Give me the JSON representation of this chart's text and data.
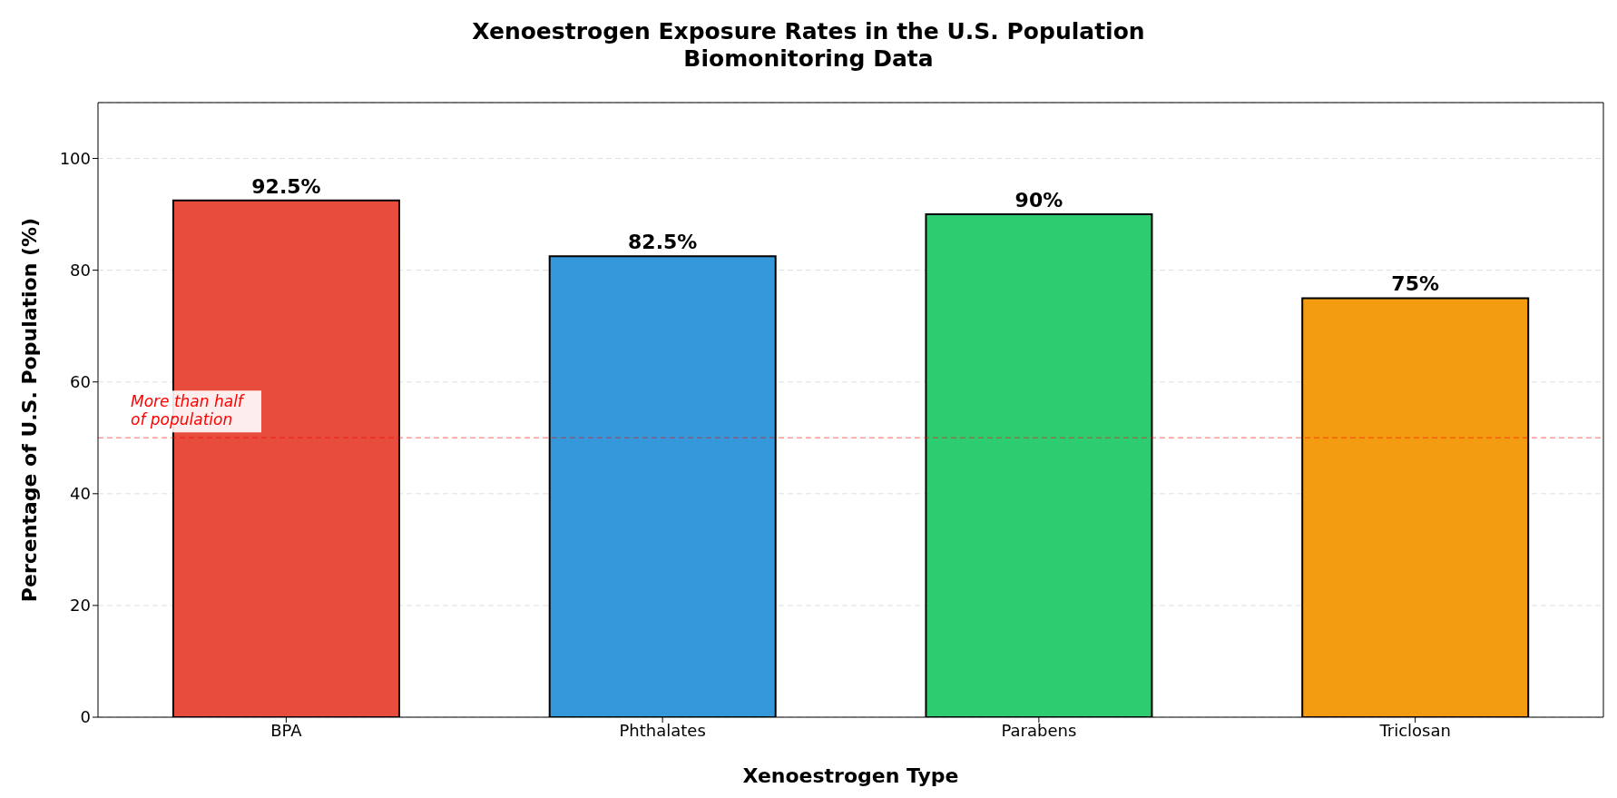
{
  "chart_data": {
    "type": "bar",
    "title": "Xenoestrogen Exposure Rates in the U.S. Population",
    "subtitle": "Biomonitoring Data",
    "xlabel": "Xenoestrogen Type",
    "ylabel": "Percentage of U.S. Population (%)",
    "categories": [
      "BPA",
      "Phthalates",
      "Parabens",
      "Triclosan"
    ],
    "values": [
      92.5,
      82.5,
      90,
      75
    ],
    "colors": [
      "#e74c3c",
      "#3498db",
      "#2ecc71",
      "#f39c12"
    ],
    "value_labels": [
      "92.5%",
      "82.5%",
      "90%",
      "75%"
    ],
    "ylim": [
      0,
      110
    ],
    "yticks": [
      0,
      20,
      40,
      60,
      80,
      100
    ],
    "grid": "y",
    "ref_lines": [
      {
        "axis": "y",
        "value": 50,
        "label": "More than half\nof population",
        "color": "#ff0000",
        "line_style": "dashed"
      }
    ]
  }
}
